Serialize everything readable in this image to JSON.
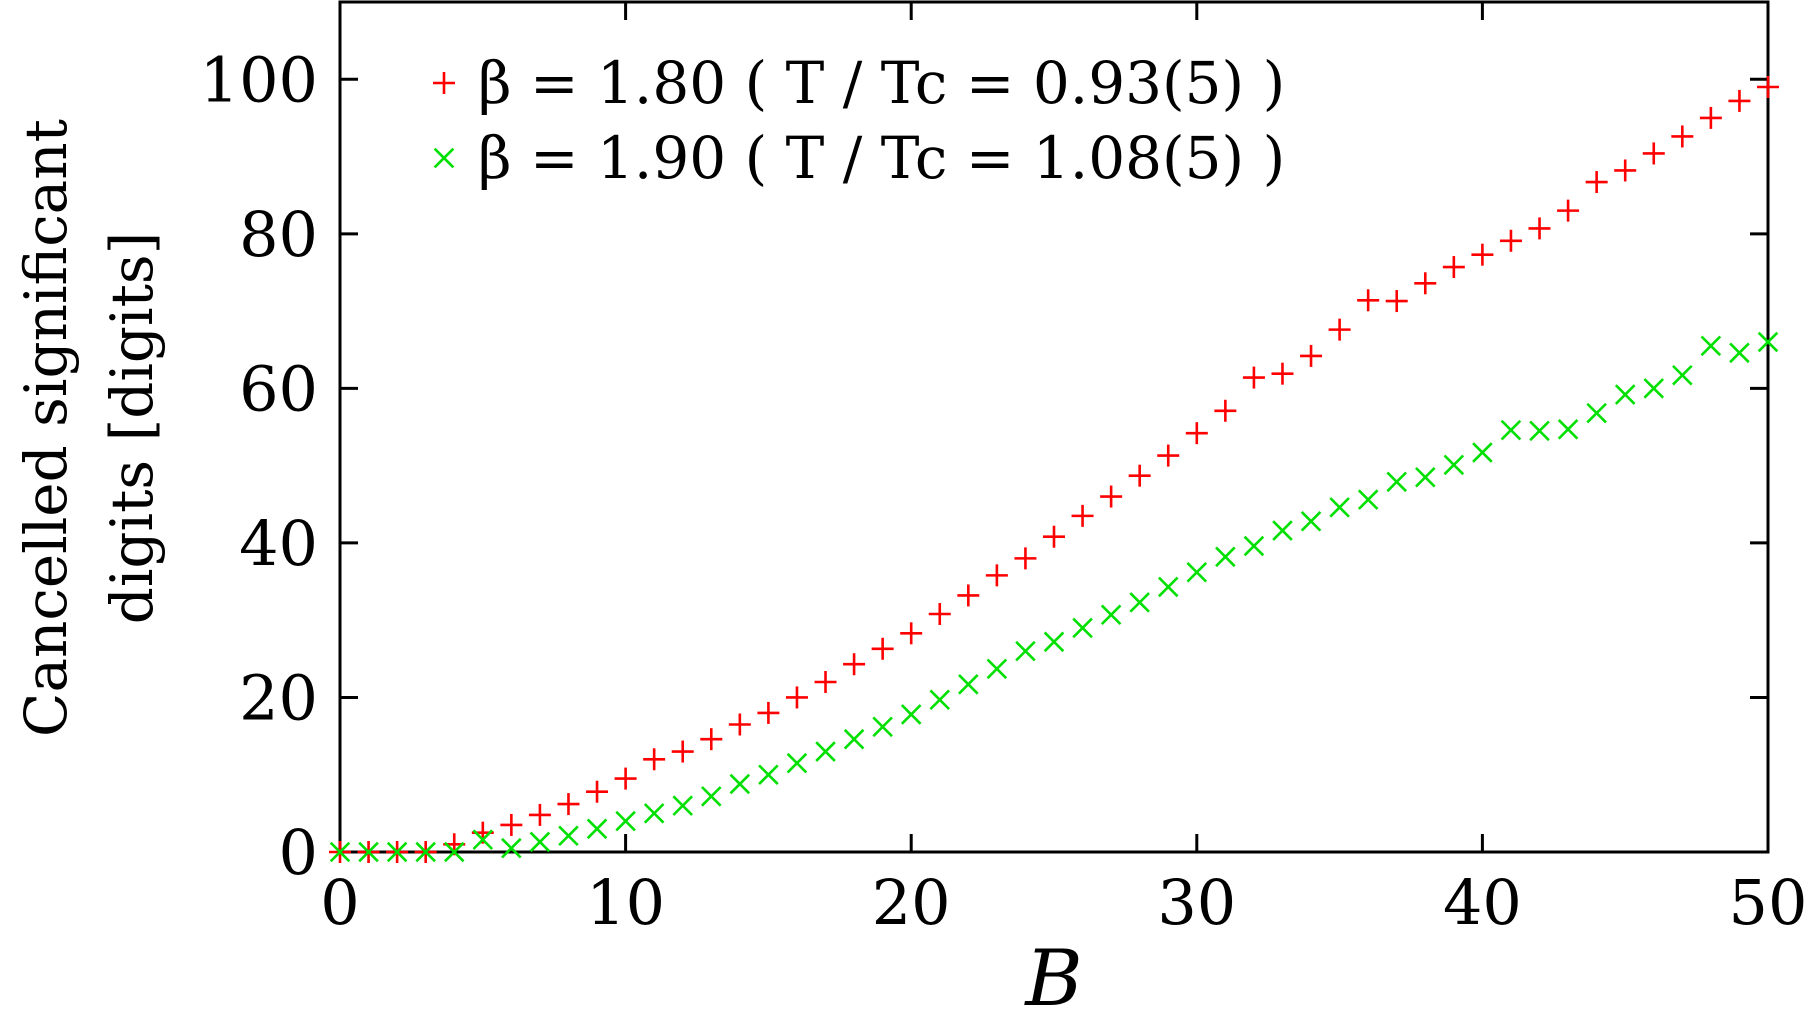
{
  "chart_data": {
    "type": "scatter",
    "xlabel": "B",
    "ylabel_lines": [
      "Cancelled significant",
      "digits [digits]"
    ],
    "xlim": [
      0,
      50
    ],
    "ylim": [
      0,
      110
    ],
    "xticks": [
      0,
      10,
      20,
      30,
      40,
      50
    ],
    "yticks": [
      0,
      20,
      40,
      60,
      80,
      100
    ],
    "legend_position": "top-left",
    "series": [
      {
        "name": "β = 1.80  ( T / Tc = 0.93(5) )",
        "marker": "plus",
        "color": "#ff0000",
        "x": [
          0,
          1,
          2,
          3,
          4,
          5,
          6,
          7,
          8,
          9,
          10,
          11,
          12,
          13,
          14,
          15,
          16,
          17,
          18,
          19,
          20,
          21,
          22,
          23,
          24,
          25,
          26,
          27,
          28,
          29,
          30,
          31,
          32,
          33,
          34,
          35,
          36,
          37,
          38,
          39,
          40,
          41,
          42,
          43,
          44,
          45,
          46,
          47,
          48,
          49,
          50
        ],
        "y": [
          0,
          0,
          0,
          0,
          1,
          2.5,
          3.5,
          4.8,
          6.2,
          7.8,
          9.5,
          12,
          13,
          14.6,
          16.5,
          18,
          20,
          22,
          24.3,
          26.3,
          28.3,
          30.8,
          33.2,
          35.8,
          38,
          40.8,
          43.5,
          46,
          48.7,
          51.3,
          54.2,
          57.1,
          61.4,
          61.9,
          64.2,
          67.6,
          71.4,
          71.3,
          73.6,
          75.7,
          77.3,
          79.1,
          80.7,
          83,
          86.7,
          88.2,
          90.4,
          92.6,
          95,
          97.2,
          99
        ]
      },
      {
        "name": "β = 1.90  ( T / Tc = 1.08(5) )",
        "marker": "x",
        "color": "#00e000",
        "x": [
          0,
          1,
          2,
          3,
          4,
          5,
          6,
          7,
          8,
          9,
          10,
          11,
          12,
          13,
          14,
          15,
          16,
          17,
          18,
          19,
          20,
          21,
          22,
          23,
          24,
          25,
          26,
          27,
          28,
          29,
          30,
          31,
          32,
          33,
          34,
          35,
          36,
          37,
          38,
          39,
          40,
          41,
          42,
          43,
          44,
          45,
          46,
          47,
          48,
          49,
          50
        ],
        "y": [
          0,
          0,
          0,
          0,
          0,
          1.6,
          0.5,
          1.3,
          2.1,
          3,
          4,
          5,
          6,
          7.2,
          8.8,
          10,
          11.5,
          13,
          14.6,
          16.2,
          17.8,
          19.7,
          21.7,
          23.7,
          26,
          27.2,
          29,
          30.7,
          32.3,
          34.3,
          36.2,
          38.2,
          39.6,
          41.6,
          42.8,
          44.6,
          45.6,
          47.9,
          48.5,
          50.1,
          51.7,
          54.6,
          54.5,
          54.7,
          56.8,
          59.2,
          60,
          61.7,
          65.5,
          64.6,
          66
        ]
      }
    ]
  }
}
